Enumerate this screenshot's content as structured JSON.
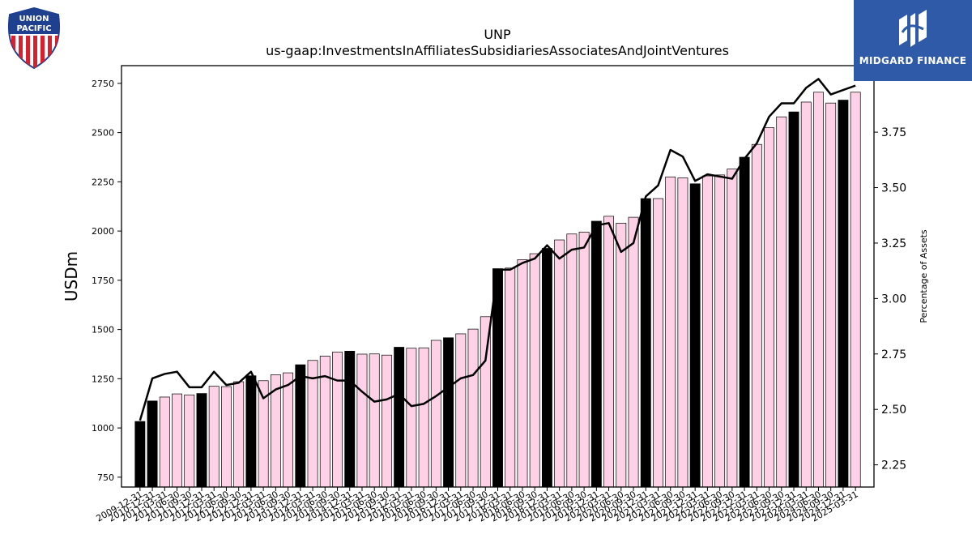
{
  "header": {
    "ticker": "UNP",
    "metric": "us-gaap:InvestmentsInAffiliatesSubsidiariesAssociatesAndJointVentures"
  },
  "logos": {
    "left": {
      "icon": "union-pacific-shield-icon",
      "line1": "UNION",
      "line2": "PACIFIC"
    },
    "right": {
      "icon": "midgard-finance-logo-icon",
      "text": "MIDGARD FINANCE",
      "color": "#2e5aa8"
    }
  },
  "chart_data": {
    "type": "bar",
    "title": "UNP",
    "subtitle": "us-gaap:InvestmentsInAffiliatesSubsidiariesAssociatesAndJointVentures",
    "ylabel": "USDm",
    "y2label": "Percentage of Assets",
    "ylim": [
      700,
      2840
    ],
    "y2lim": [
      2.15,
      4.05
    ],
    "yticks": [
      750,
      1000,
      1250,
      1500,
      1750,
      2000,
      2250,
      2500,
      2750
    ],
    "y2ticks": [
      "2.25",
      "2.50",
      "2.75",
      "3.00",
      "3.25",
      "3.50",
      "3.75",
      "4.00"
    ],
    "categories": [
      "2009-12-31",
      "2010-12-31",
      "2011-03-31",
      "2011-06-30",
      "2011-09-30",
      "2011-12-31",
      "2012-03-31",
      "2012-06-30",
      "2012-09-30",
      "2012-12-31",
      "2013-03-31",
      "2013-06-30",
      "2013-09-30",
      "2013-12-31",
      "2014-03-31",
      "2014-06-30",
      "2014-09-30",
      "2014-12-31",
      "2015-03-31",
      "2015-06-30",
      "2015-09-30",
      "2015-12-31",
      "2016-03-31",
      "2016-06-30",
      "2016-09-30",
      "2016-12-31",
      "2017-03-31",
      "2017-06-30",
      "2017-09-30",
      "2017-12-31",
      "2018-03-31",
      "2018-06-30",
      "2018-09-30",
      "2018-12-31",
      "2019-03-31",
      "2019-06-30",
      "2019-09-30",
      "2019-12-31",
      "2020-03-31",
      "2020-06-30",
      "2020-09-30",
      "2020-12-31",
      "2021-03-31",
      "2021-06-30",
      "2021-09-30",
      "2021-12-31",
      "2022-03-31",
      "2022-06-30",
      "2022-09-30",
      "2022-12-31",
      "2023-03-31",
      "2023-06-30",
      "2023-09-30",
      "2023-12-31",
      "2024-03-31",
      "2024-06-30",
      "2024-09-30",
      "2024-12-31",
      "2025-03-31"
    ],
    "annual": [
      true,
      true,
      false,
      false,
      false,
      true,
      false,
      false,
      false,
      true,
      false,
      false,
      false,
      true,
      false,
      false,
      false,
      true,
      false,
      false,
      false,
      true,
      false,
      false,
      false,
      true,
      false,
      false,
      false,
      true,
      false,
      false,
      false,
      true,
      false,
      false,
      false,
      true,
      false,
      false,
      false,
      true,
      false,
      false,
      false,
      true,
      false,
      false,
      false,
      true,
      false,
      false,
      false,
      true,
      false,
      false,
      false,
      true,
      false
    ],
    "series": [
      {
        "name": "USDm",
        "kind": "bar",
        "values": [
          1033,
          1137,
          1157,
          1173,
          1168,
          1175,
          1212,
          1210,
          1235,
          1265,
          1240,
          1270,
          1280,
          1321,
          1343,
          1365,
          1385,
          1390,
          1375,
          1376,
          1370,
          1410,
          1405,
          1407,
          1445,
          1458,
          1478,
          1502,
          1565,
          1809,
          1812,
          1855,
          1885,
          1912,
          1955,
          1985,
          1995,
          2050,
          2075,
          2040,
          2070,
          2165,
          2165,
          2275,
          2270,
          2240,
          2280,
          2285,
          2315,
          2375,
          2440,
          2525,
          2580,
          2605,
          2655,
          2705,
          2650,
          2665,
          2705
        ]
      },
      {
        "name": "Percentage of Assets",
        "kind": "line",
        "values": [
          2.45,
          2.64,
          2.66,
          2.67,
          2.6,
          2.6,
          2.67,
          2.61,
          2.62,
          2.67,
          2.55,
          2.59,
          2.61,
          2.65,
          2.64,
          2.65,
          2.63,
          2.63,
          2.58,
          2.535,
          2.545,
          2.57,
          2.515,
          2.525,
          2.56,
          2.6,
          2.64,
          2.655,
          2.72,
          3.13,
          3.13,
          3.16,
          3.18,
          3.24,
          3.18,
          3.22,
          3.23,
          3.33,
          3.34,
          3.21,
          3.25,
          3.46,
          3.51,
          3.67,
          3.64,
          3.53,
          3.56,
          3.55,
          3.54,
          3.63,
          3.7,
          3.82,
          3.88,
          3.88,
          3.95,
          3.99,
          3.92,
          3.94,
          3.96
        ]
      }
    ],
    "colors": {
      "annual": "#000000",
      "quarterly": "#ffd1e6",
      "edge": "#000000",
      "line": "#000000"
    },
    "grid": false,
    "legend": "none"
  }
}
